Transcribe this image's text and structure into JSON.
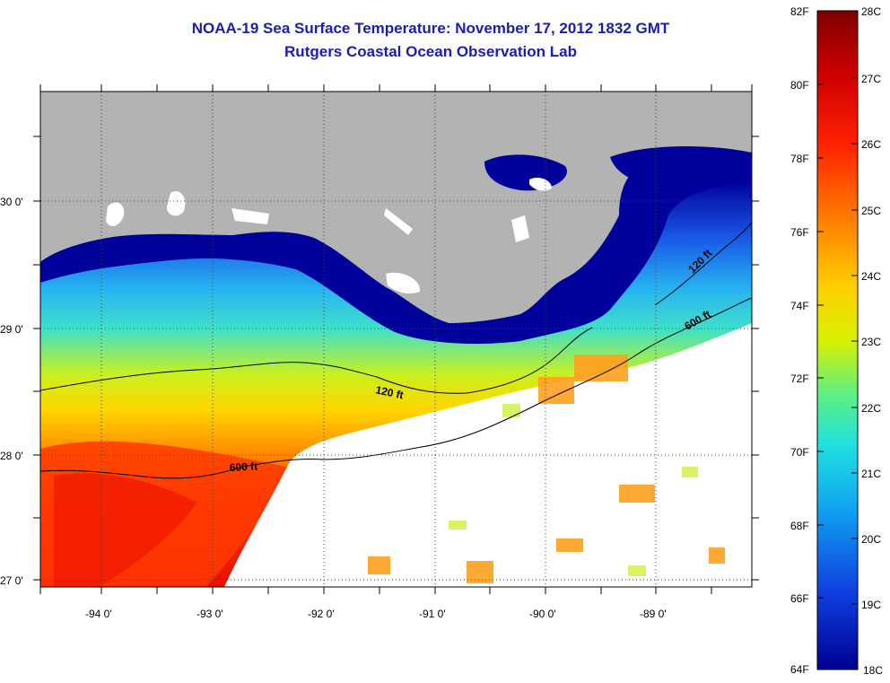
{
  "title": "NOAA-19 Sea Surface Temperature:  November 17, 2012 1832 GMT",
  "subtitle": "Rutgers Coastal Ocean Observation Lab",
  "lat_ticks": [
    "30 0'",
    "29 0'",
    "28 0'",
    "27 0'"
  ],
  "lon_ticks": [
    "-94 0'",
    "-93 0'",
    "-92 0'",
    "-91 0'",
    "-90 0'",
    "-89 0'"
  ],
  "contours": [
    "120 ft",
    "600 ft",
    "120 ft",
    "600 ft"
  ],
  "colorbar": {
    "fahrenheit": [
      "82F",
      "80F",
      "78F",
      "76F",
      "74F",
      "72F",
      "70F",
      "68F",
      "66F",
      "64F"
    ],
    "celsius": [
      "28C",
      "27C",
      "26C",
      "25C",
      "24C",
      "23C",
      "22C",
      "21C",
      "20C",
      "19C",
      "18C"
    ]
  },
  "colors": {
    "land": "#b3b3b3",
    "cloud": "#ffffff",
    "title": "#1c1cb4"
  }
}
